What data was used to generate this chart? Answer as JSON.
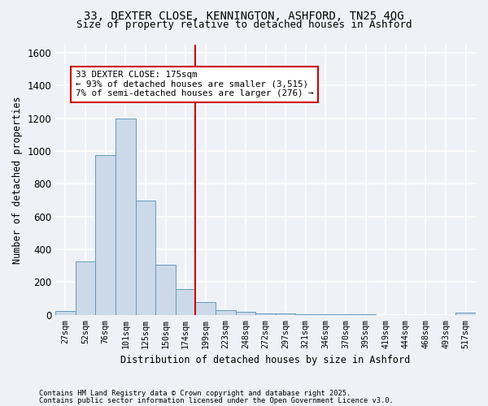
{
  "title1": "33, DEXTER CLOSE, KENNINGTON, ASHFORD, TN25 4QG",
  "title2": "Size of property relative to detached houses in Ashford",
  "xlabel": "Distribution of detached houses by size in Ashford",
  "ylabel": "Number of detached properties",
  "bar_labels": [
    "27sqm",
    "52sqm",
    "76sqm",
    "101sqm",
    "125sqm",
    "150sqm",
    "174sqm",
    "199sqm",
    "223sqm",
    "248sqm",
    "272sqm",
    "297sqm",
    "321sqm",
    "346sqm",
    "370sqm",
    "395sqm",
    "419sqm",
    "444sqm",
    "468sqm",
    "493sqm",
    "517sqm"
  ],
  "bar_values": [
    25,
    325,
    975,
    1200,
    700,
    305,
    160,
    80,
    30,
    18,
    10,
    8,
    5,
    3,
    3,
    3,
    0,
    0,
    0,
    0,
    12
  ],
  "bar_color": "#ccd9e8",
  "bar_edge_color": "#6699bb",
  "vline_x_idx": 6,
  "vline_color": "#cc0000",
  "annotation_text": "33 DEXTER CLOSE: 175sqm\n← 93% of detached houses are smaller (3,515)\n7% of semi-detached houses are larger (276) →",
  "annotation_box_color": "#ffffff",
  "annotation_box_edge": "#cc0000",
  "ylim": [
    0,
    1650
  ],
  "yticks": [
    0,
    200,
    400,
    600,
    800,
    1000,
    1200,
    1400,
    1600
  ],
  "footer1": "Contains HM Land Registry data © Crown copyright and database right 2025.",
  "footer2": "Contains public sector information licensed under the Open Government Licence v3.0.",
  "bg_color": "#eef2f7",
  "grid_color": "#ffffff"
}
